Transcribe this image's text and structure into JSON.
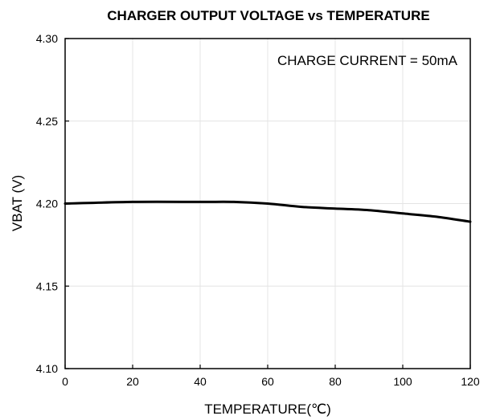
{
  "chart_data": {
    "type": "line",
    "title": "CHARGER OUTPUT VOLTAGE vs TEMPERATURE",
    "annotation": "CHARGE CURRENT = 50mA",
    "xlabel": "TEMPERATURE(℃)",
    "ylabel": "VBAT (V)",
    "xlim": [
      0,
      120
    ],
    "ylim": [
      4.1,
      4.3
    ],
    "xticks": [
      0,
      20,
      40,
      60,
      80,
      100,
      120
    ],
    "yticks": [
      4.1,
      4.15,
      4.2,
      4.25,
      4.3
    ],
    "ytick_labels": [
      "4.10",
      "4.15",
      "4.20",
      "4.25",
      "4.30"
    ],
    "xtick_labels": [
      "0",
      "20",
      "40",
      "60",
      "80",
      "100",
      "120"
    ],
    "grid": true,
    "series": [
      {
        "x": [
          0,
          20,
          40,
          50,
          60,
          70,
          80,
          90,
          100,
          110,
          120
        ],
        "y": [
          4.2,
          4.201,
          4.201,
          4.201,
          4.2,
          4.198,
          4.197,
          4.196,
          4.194,
          4.192,
          4.189
        ]
      }
    ]
  }
}
